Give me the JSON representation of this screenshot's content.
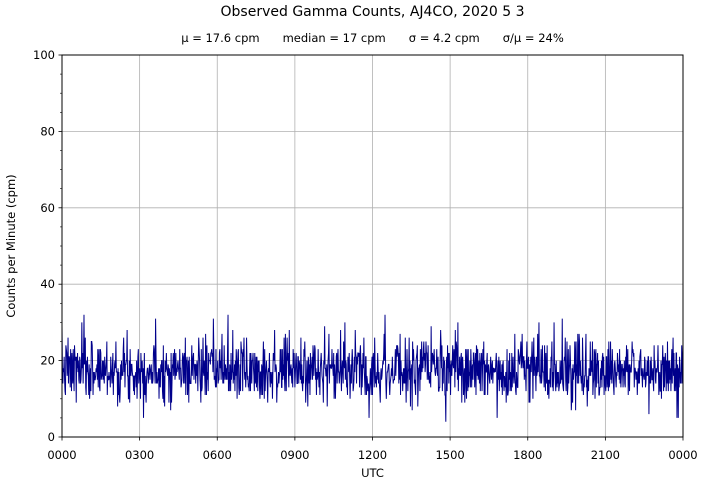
{
  "figure": {
    "background_color": "#ffffff",
    "text_color": "#000000"
  },
  "chart_data": {
    "type": "line",
    "title": "Observed Gamma Counts, AJ4CO, 2020 5 3",
    "subtitle_stats": [
      "μ = 17.6 cpm",
      "median = 17 cpm",
      "σ = 4.2 cpm",
      "σ/μ = 24%"
    ],
    "xlabel": "UTC",
    "ylabel": "Counts per Minute (cpm)",
    "xlim_minutes": [
      0,
      1440
    ],
    "ylim": [
      0,
      100
    ],
    "x_tick_minutes": [
      0,
      180,
      360,
      540,
      720,
      900,
      1080,
      1260,
      1440
    ],
    "x_tick_labels": [
      "0000",
      "0300",
      "0600",
      "0900",
      "1200",
      "1500",
      "1800",
      "2100",
      "0000"
    ],
    "y_ticks": [
      0,
      20,
      40,
      60,
      80,
      100
    ],
    "y_tick_labels": [
      "0",
      "20",
      "40",
      "60",
      "80",
      "100"
    ],
    "y_minor_step": 5,
    "grid": true,
    "grid_color": "#b0b0b0",
    "line_color": "#00008B",
    "spine_color": "#000000",
    "series": {
      "sample_interval_minutes": 1,
      "n_points": 1440,
      "stats": {
        "mean_cpm": 17.6,
        "median_cpm": 17,
        "sigma_cpm": 4.2,
        "sigma_over_mean_pct": 24
      },
      "generator": {
        "seed": 7,
        "mean": 17.6,
        "sigma": 4.2,
        "min_clamp": 5,
        "max_clamp": 32
      },
      "anomalies": [
        {
          "minute": 51,
          "value": 32
        },
        {
          "minute": 385,
          "value": 32
        },
        {
          "minute": 749,
          "value": 32
        },
        {
          "minute": 890,
          "value": 4
        }
      ]
    }
  }
}
